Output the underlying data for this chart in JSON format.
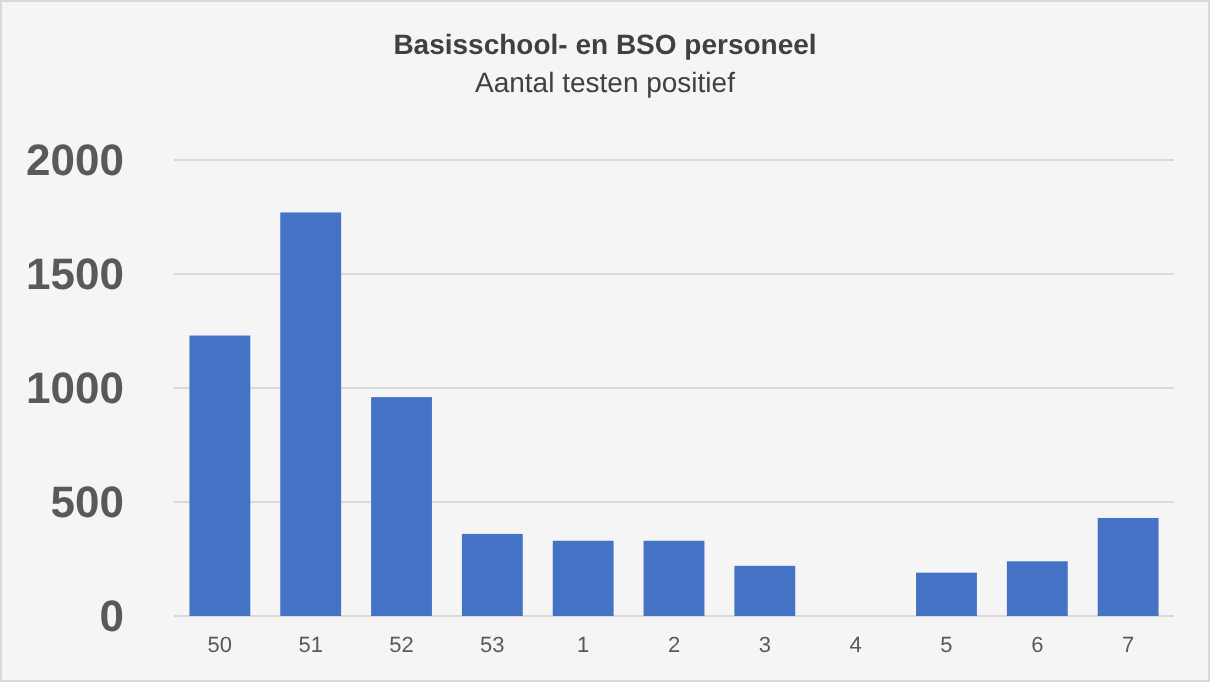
{
  "chart_data": {
    "type": "bar",
    "title": "Basisschool- en BSO personeel",
    "subtitle": "Aantal testen positief",
    "categories": [
      "50",
      "51",
      "52",
      "53",
      "1",
      "2",
      "3",
      "4",
      "5",
      "6",
      "7"
    ],
    "values": [
      1230,
      1770,
      960,
      360,
      330,
      330,
      220,
      null,
      190,
      240,
      430
    ],
    "color": "#4472c4",
    "ylim": [
      0,
      2000
    ],
    "yticks": [
      0,
      500,
      1000,
      1500,
      2000
    ],
    "grid": "y"
  }
}
